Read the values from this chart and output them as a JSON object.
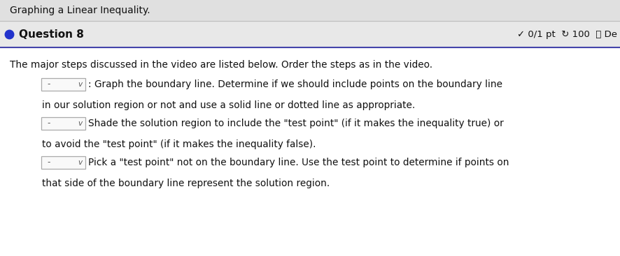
{
  "title": "Graphing a Linear Inequality.",
  "question_label": "Question 8",
  "question_dot_color": "#2233cc",
  "score_text": "✓ 0/1 pt  ↻ 100  ⓘ De",
  "intro_text": "The major steps discussed in the video are listed below. Order the steps as in the video.",
  "step1_line1": ": Graph the boundary line. Determine if we should include points on the boundary line",
  "step1_line2": "in our solution region or not and use a solid line or dotted line as appropriate.",
  "step2_line1": "Shade the solution region to include the \"test point\" (if it makes the inequality true) or",
  "step2_line2": "to avoid the \"test point\" (if it makes the inequality false).",
  "step3_line1": "Pick a \"test point\" not on the boundary line. Use the test point to determine if points on",
  "step3_line2": "that side of the boundary line represent the solution region.",
  "bg_title": "#e0e0e0",
  "bg_question_bar": "#e8e8e8",
  "bg_body": "#f2f2f2",
  "bg_white": "#ffffff",
  "separator_color": "#c0c0c0",
  "blue_separator": "#4444aa",
  "text_color": "#111111",
  "dropdown_border": "#aaaaaa",
  "body_fontsize": 9.8,
  "title_fontsize": 10.0,
  "question_fontsize": 11.0,
  "score_fontsize": 9.5
}
